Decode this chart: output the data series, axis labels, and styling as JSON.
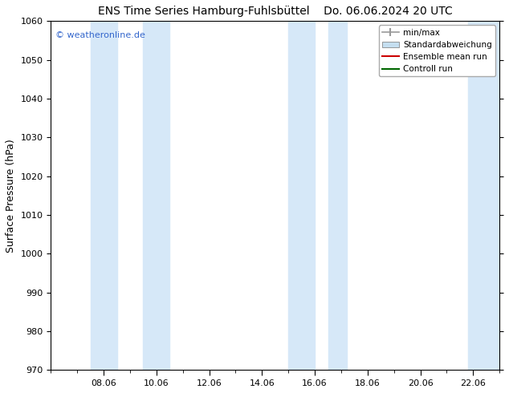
{
  "title_left": "ENS Time Series Hamburg-Fuhlsbüttel",
  "title_right": "Do. 06.06.2024 20 UTC",
  "ylabel": "Surface Pressure (hPa)",
  "ylim": [
    970,
    1060
  ],
  "yticks": [
    970,
    980,
    990,
    1000,
    1010,
    1020,
    1030,
    1040,
    1050,
    1060
  ],
  "x_tick_labels": [
    "08.06",
    "10.06",
    "12.06",
    "14.06",
    "16.06",
    "18.06",
    "20.06",
    "22.06"
  ],
  "x_tick_positions": [
    2,
    4,
    6,
    8,
    10,
    12,
    14,
    16
  ],
  "xlim": [
    0,
    17
  ],
  "shaded_bands": [
    {
      "x_start": 1.5,
      "x_end": 2.5,
      "color": "#d6e8f8"
    },
    {
      "x_start": 3.5,
      "x_end": 4.5,
      "color": "#d6e8f8"
    },
    {
      "x_start": 9.0,
      "x_end": 10.0,
      "color": "#d6e8f8"
    },
    {
      "x_start": 10.5,
      "x_end": 11.2,
      "color": "#d6e8f8"
    },
    {
      "x_start": 15.8,
      "x_end": 17.0,
      "color": "#d6e8f8"
    }
  ],
  "watermark_text": "© weatheronline.de",
  "watermark_color": "#3366cc",
  "legend_entries": [
    {
      "label": "min/max",
      "color": "#999999",
      "style": "errorbar"
    },
    {
      "label": "Standardabweichung",
      "color": "#c5dff0",
      "style": "bar"
    },
    {
      "label": "Ensemble mean run",
      "color": "#cc0000",
      "style": "line"
    },
    {
      "label": "Controll run",
      "color": "#006600",
      "style": "line"
    }
  ],
  "background_color": "#ffffff",
  "plot_bg_color": "#ffffff",
  "title_fontsize": 10,
  "axis_label_fontsize": 9,
  "tick_fontsize": 8,
  "legend_fontsize": 7.5
}
